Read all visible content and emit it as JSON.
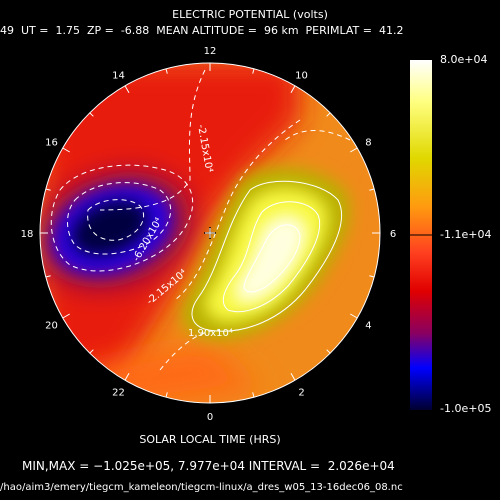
{
  "header": {
    "title": "ELECTRIC POTENTIAL (volts)",
    "info": "49  UT =  1.75  ZP =  -6.88  MEAN ALTITUDE =  96 km  PERIMLAT =  41.2"
  },
  "map": {
    "xlabel": "SOLAR LOCAL TIME (HRS)",
    "hour_labels": [
      "12",
      "10",
      "8",
      "6",
      "4",
      "2",
      "0",
      "22",
      "20",
      "18",
      "16",
      "14"
    ],
    "contour_labels": [
      "-2.15x10⁴",
      "-6.20x10⁴",
      "-2.15x10⁴",
      "1.90x10⁴"
    ],
    "colorbar": {
      "max_label": "8.0e+04",
      "mid_label": "-1.1e+04",
      "min_label": "-1.0e+05"
    }
  },
  "footer": {
    "minmax": "MIN,MAX = −1.025e+05, 7.977e+04 INTERVAL =  2.026e+04",
    "filepath": "/hao/aim3/emery/tiegcm_kameleon/tiegcm-linux/a_dres_w05_13-16dec06_08.nc"
  },
  "colors": {
    "background": "#000000",
    "min_color": "#0000ff",
    "mid_color": "#ff0000",
    "max_color": "#ffffff",
    "text": "#ffffff"
  }
}
